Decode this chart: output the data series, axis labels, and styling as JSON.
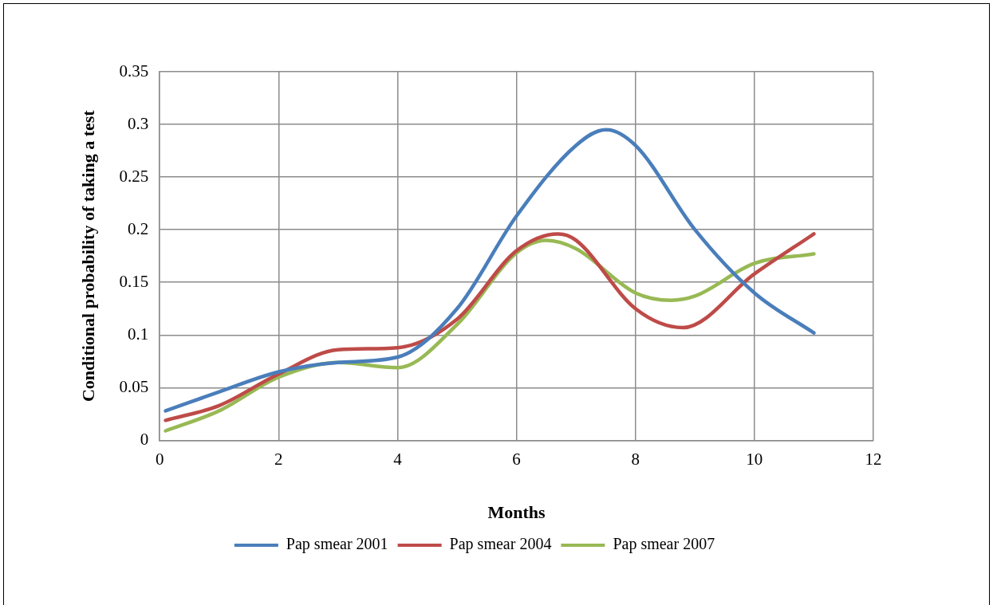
{
  "chart_data": {
    "type": "line",
    "xlabel": "Months",
    "ylabel": "Conditional probability of taking a test",
    "xlim": [
      0,
      12
    ],
    "xticks": [
      0,
      2,
      4,
      6,
      8,
      10,
      12
    ],
    "ylim": [
      0,
      0.35
    ],
    "yticks": [
      0,
      0.05,
      0.1,
      0.15,
      0.2,
      0.25,
      0.3,
      0.35
    ],
    "grid": true,
    "legend": "bottom",
    "marker": "none",
    "line_style": "solid",
    "series": [
      {
        "name": "Pap smear 2001",
        "color": "#4a7ebb",
        "x": [
          0.1,
          1,
          2,
          3,
          4,
          5,
          6,
          7,
          7.5,
          8,
          9,
          10,
          11
        ],
        "values": [
          0.028,
          0.046,
          0.065,
          0.074,
          0.079,
          0.125,
          0.213,
          0.28,
          0.295,
          0.28,
          0.2,
          0.14,
          0.102
        ]
      },
      {
        "name": "Pap smear 2004",
        "color": "#be4b48",
        "x": [
          0.1,
          1,
          2,
          3,
          4,
          5,
          6,
          6.7,
          7,
          8,
          8.8,
          10,
          11
        ],
        "values": [
          0.019,
          0.033,
          0.063,
          0.086,
          0.088,
          0.115,
          0.18,
          0.196,
          0.19,
          0.125,
          0.107,
          0.158,
          0.196
        ]
      },
      {
        "name": "Pap smear 2007",
        "color": "#98b954",
        "x": [
          0.1,
          1,
          2,
          3,
          4,
          5,
          6,
          6.5,
          7,
          8,
          8.6,
          9,
          10,
          11
        ],
        "values": [
          0.009,
          0.028,
          0.06,
          0.074,
          0.069,
          0.11,
          0.178,
          0.19,
          0.182,
          0.14,
          0.133,
          0.137,
          0.168,
          0.177
        ]
      }
    ]
  }
}
